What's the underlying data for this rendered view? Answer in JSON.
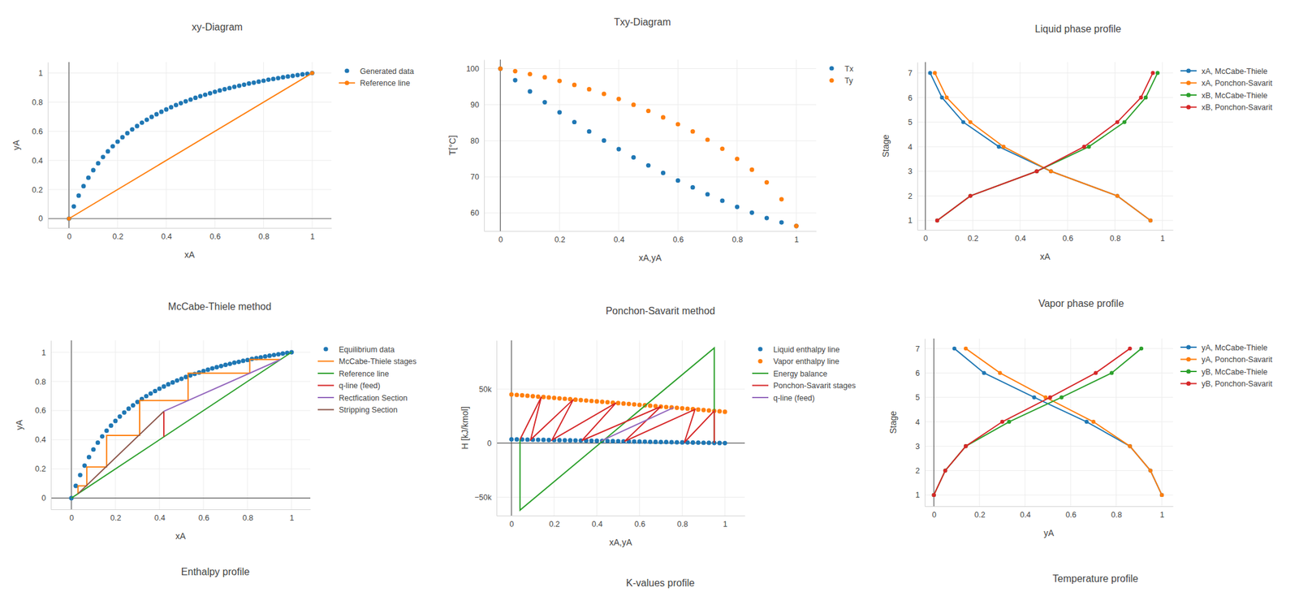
{
  "chart_data": [
    {
      "type": "scatter",
      "title": "xy-Diagram",
      "x_label": "xA",
      "y_label": "yA",
      "xlim": [
        -0.087,
        1.079
      ],
      "ylim": [
        -0.064,
        1.075
      ],
      "xticks": [
        0,
        0.2,
        0.4,
        0.6,
        0.8,
        1
      ],
      "yticks": [
        0,
        0.2,
        0.4,
        0.6,
        0.8,
        1
      ],
      "grid": true,
      "legend": "right",
      "series": [
        {
          "name": "Generated data",
          "color": "#1f77b4",
          "marker": "circle",
          "line_style": "none",
          "x": [
            0,
            0.02,
            0.04,
            0.06,
            0.08,
            0.1,
            0.12,
            0.14,
            0.16,
            0.18,
            0.2,
            0.22,
            0.24,
            0.26,
            0.28,
            0.3,
            0.32,
            0.34,
            0.36,
            0.38,
            0.4,
            0.42,
            0.44,
            0.46,
            0.48,
            0.5,
            0.52,
            0.54,
            0.56,
            0.58,
            0.6,
            0.62,
            0.64,
            0.66,
            0.68,
            0.7,
            0.72,
            0.74,
            0.76,
            0.78,
            0.8,
            0.82,
            0.84,
            0.86,
            0.88,
            0.9,
            0.92,
            0.94,
            0.96,
            0.98,
            1
          ],
          "values": [
            0,
            0.084,
            0.158,
            0.223,
            0.281,
            0.333,
            0.38,
            0.423,
            0.462,
            0.497,
            0.529,
            0.559,
            0.587,
            0.613,
            0.636,
            0.659,
            0.679,
            0.699,
            0.717,
            0.734,
            0.75,
            0.765,
            0.78,
            0.793,
            0.806,
            0.818,
            0.83,
            0.841,
            0.851,
            0.861,
            0.871,
            0.88,
            0.889,
            0.897,
            0.905,
            0.913,
            0.92,
            0.928,
            0.934,
            0.941,
            0.947,
            0.954,
            0.959,
            0.965,
            0.971,
            0.976,
            0.981,
            0.986,
            0.991,
            0.995,
            1
          ]
        },
        {
          "name": "Reference line",
          "color": "#ff7f0e",
          "marker": "circle",
          "line_style": "solid",
          "x": [
            0,
            1
          ],
          "values": [
            0,
            1
          ]
        }
      ]
    },
    {
      "type": "scatter",
      "title": "Txy-Diagram",
      "x_label": "xA,yA",
      "y_label": "T[°C]",
      "xlim": [
        -0.055,
        1.067
      ],
      "ylim": [
        55,
        102.5
      ],
      "xticks": [
        0,
        0.2,
        0.4,
        0.6,
        0.8,
        1
      ],
      "yticks": [
        60,
        70,
        80,
        90,
        100
      ],
      "grid": true,
      "legend": "right",
      "series": [
        {
          "name": "Tx",
          "color": "#1f77b4",
          "marker": "circle",
          "line_style": "none",
          "x": [
            0,
            0.05,
            0.1,
            0.15,
            0.2,
            0.25,
            0.3,
            0.35,
            0.4,
            0.45,
            0.5,
            0.55,
            0.6,
            0.65,
            0.7,
            0.75,
            0.8,
            0.85,
            0.9,
            0.95,
            1
          ],
          "values": [
            100,
            96.8,
            93.7,
            90.7,
            87.9,
            85.2,
            82.6,
            80.1,
            77.7,
            75.4,
            73.2,
            71.1,
            69.0,
            67.1,
            65.2,
            63.4,
            61.7,
            60.1,
            58.6,
            57.4,
            56.4
          ]
        },
        {
          "name": "Ty",
          "color": "#ff7f0e",
          "marker": "circle",
          "line_style": "none",
          "x": [
            0,
            0.05,
            0.1,
            0.15,
            0.2,
            0.25,
            0.3,
            0.35,
            0.4,
            0.45,
            0.5,
            0.55,
            0.6,
            0.65,
            0.7,
            0.75,
            0.8,
            0.85,
            0.9,
            0.95,
            1
          ],
          "values": [
            100,
            99.3,
            98.5,
            97.6,
            96.6,
            95.5,
            94.3,
            93.0,
            91.6,
            90.0,
            88.3,
            86.5,
            84.6,
            82.6,
            80.3,
            77.8,
            75.0,
            72.0,
            68.5,
            63.8,
            56.4
          ]
        }
      ]
    },
    {
      "type": "line",
      "title": "Liquid phase profile",
      "x_label": "xA",
      "y_label": "Stage",
      "xlim": [
        -0.034,
        1.045
      ],
      "ylim": [
        0.62,
        7.44
      ],
      "xticks": [
        0,
        0.2,
        0.4,
        0.6,
        0.8,
        1
      ],
      "yticks": [
        1,
        2,
        3,
        4,
        5,
        6,
        7
      ],
      "grid": true,
      "legend": "right",
      "series": [
        {
          "name": "xA, McCabe-Thiele",
          "color": "#1f77b4",
          "marker": "circle",
          "line_style": "solid",
          "x": [
            0.95,
            0.81,
            0.53,
            0.31,
            0.16,
            0.07,
            0.02
          ],
          "values": [
            1,
            2,
            3,
            4,
            5,
            6,
            7
          ]
        },
        {
          "name": "xA, Ponchon-Savarit",
          "color": "#ff7f0e",
          "marker": "circle",
          "line_style": "solid",
          "x": [
            0.95,
            0.81,
            0.53,
            0.33,
            0.19,
            0.09,
            0.04
          ],
          "values": [
            1,
            2,
            3,
            4,
            5,
            6,
            7
          ]
        },
        {
          "name": "xB, McCabe-Thiele",
          "color": "#2ca02c",
          "marker": "circle",
          "line_style": "solid",
          "x": [
            0.05,
            0.19,
            0.47,
            0.69,
            0.84,
            0.93,
            0.98
          ],
          "values": [
            1,
            2,
            3,
            4,
            5,
            6,
            7
          ]
        },
        {
          "name": "xB, Ponchon-Savarit",
          "color": "#d62728",
          "marker": "circle",
          "line_style": "solid",
          "x": [
            0.05,
            0.19,
            0.47,
            0.67,
            0.81,
            0.91,
            0.96
          ],
          "values": [
            1,
            2,
            3,
            4,
            5,
            6,
            7
          ]
        }
      ]
    },
    {
      "type": "line",
      "title": "McCabe-Thiele method",
      "x_label": "xA",
      "y_label": "yA",
      "xlim": [
        -0.093,
        1.085
      ],
      "ylim": [
        -0.077,
        1.081
      ],
      "xticks": [
        0,
        0.2,
        0.4,
        0.6,
        0.8,
        1
      ],
      "yticks": [
        0,
        0.2,
        0.4,
        0.6,
        0.8,
        1
      ],
      "grid": true,
      "legend": "right",
      "series": [
        {
          "name": "Equilibrium data",
          "color": "#1f77b4",
          "marker": "circle",
          "line_style": "none",
          "x": [
            0,
            0.02,
            0.04,
            0.06,
            0.08,
            0.1,
            0.12,
            0.14,
            0.16,
            0.18,
            0.2,
            0.22,
            0.24,
            0.26,
            0.28,
            0.3,
            0.32,
            0.34,
            0.36,
            0.38,
            0.4,
            0.42,
            0.44,
            0.46,
            0.48,
            0.5,
            0.52,
            0.54,
            0.56,
            0.58,
            0.6,
            0.62,
            0.64,
            0.66,
            0.68,
            0.7,
            0.72,
            0.74,
            0.76,
            0.78,
            0.8,
            0.82,
            0.84,
            0.86,
            0.88,
            0.9,
            0.92,
            0.94,
            0.96,
            0.98,
            1
          ],
          "values": [
            0,
            0.084,
            0.158,
            0.223,
            0.281,
            0.333,
            0.38,
            0.423,
            0.462,
            0.497,
            0.529,
            0.559,
            0.587,
            0.613,
            0.636,
            0.659,
            0.679,
            0.699,
            0.717,
            0.734,
            0.75,
            0.765,
            0.78,
            0.793,
            0.806,
            0.818,
            0.83,
            0.841,
            0.851,
            0.861,
            0.871,
            0.88,
            0.889,
            0.897,
            0.905,
            0.913,
            0.92,
            0.928,
            0.934,
            0.941,
            0.947,
            0.954,
            0.959,
            0.965,
            0.971,
            0.976,
            0.981,
            0.986,
            0.991,
            0.995,
            1
          ]
        },
        {
          "name": "McCabe-Thiele stages",
          "color": "#ff7f0e",
          "marker": "none",
          "line_style": "solid",
          "x": [
            0.95,
            0.81,
            0.81,
            0.53,
            0.53,
            0.31,
            0.31,
            0.16,
            0.16,
            0.07,
            0.07,
            0.03,
            0.03
          ],
          "values": [
            0.95,
            0.95,
            0.856,
            0.856,
            0.669,
            0.669,
            0.43,
            0.43,
            0.214,
            0.214,
            0.084,
            0.084,
            0.03
          ]
        },
        {
          "name": "Reference line",
          "color": "#2ca02c",
          "marker": "none",
          "line_style": "solid",
          "x": [
            0,
            1
          ],
          "values": [
            0,
            1
          ]
        },
        {
          "name": "q-line (feed)",
          "color": "#d62728",
          "marker": "none",
          "line_style": "solid",
          "x": [
            0.42,
            0.42
          ],
          "values": [
            0.42,
            0.595
          ]
        },
        {
          "name": "Rectfication Section",
          "color": "#9467bd",
          "marker": "none",
          "line_style": "solid",
          "x": [
            0.42,
            0.95
          ],
          "values": [
            0.595,
            0.95
          ]
        },
        {
          "name": "Stripping Section",
          "color": "#8c564b",
          "marker": "none",
          "line_style": "solid",
          "x": [
            0.03,
            0.42
          ],
          "values": [
            0.03,
            0.595
          ]
        }
      ]
    },
    {
      "type": "line",
      "title": "Ponchon-Savarit method",
      "x_label": "xA,yA",
      "y_label": "H [kJ/kmol]",
      "xlim": [
        -0.07,
        1.093
      ],
      "ylim": [
        -67000,
        95000
      ],
      "xticks": [
        0,
        0.2,
        0.4,
        0.6,
        0.8,
        1
      ],
      "yticks": [
        {
          "value": -50000,
          "label": "−50k"
        },
        0,
        {
          "value": 50000,
          "label": "50k"
        }
      ],
      "grid": true,
      "legend": "right",
      "series": [
        {
          "name": "Liquid enthalpy line",
          "color": "#1f77b4",
          "marker": "circle",
          "line_style": "none",
          "x": [
            0,
            0.025,
            0.05,
            0.075,
            0.1,
            0.125,
            0.15,
            0.175,
            0.2,
            0.225,
            0.25,
            0.275,
            0.3,
            0.325,
            0.35,
            0.375,
            0.4,
            0.425,
            0.45,
            0.475,
            0.5,
            0.525,
            0.55,
            0.575,
            0.6,
            0.625,
            0.65,
            0.675,
            0.7,
            0.725,
            0.75,
            0.775,
            0.8,
            0.825,
            0.85,
            0.875,
            0.9,
            0.925,
            0.95,
            0.975,
            1
          ],
          "values": [
            3500,
            3412,
            3325,
            3238,
            3150,
            3062,
            2975,
            2888,
            2800,
            2712,
            2625,
            2538,
            2450,
            2362,
            2275,
            2188,
            2100,
            2012,
            1925,
            1838,
            1750,
            1662,
            1575,
            1488,
            1400,
            1312,
            1225,
            1138,
            1050,
            962,
            875,
            788,
            700,
            612,
            525,
            438,
            350,
            262,
            175,
            88,
            0
          ]
        },
        {
          "name": "Vapor enthalpy line",
          "color": "#ff7f0e",
          "marker": "circle",
          "line_style": "none",
          "x": [
            0,
            0.025,
            0.05,
            0.075,
            0.1,
            0.125,
            0.15,
            0.175,
            0.2,
            0.225,
            0.25,
            0.275,
            0.3,
            0.325,
            0.35,
            0.375,
            0.4,
            0.425,
            0.45,
            0.475,
            0.5,
            0.525,
            0.55,
            0.575,
            0.6,
            0.625,
            0.65,
            0.675,
            0.7,
            0.725,
            0.75,
            0.775,
            0.8,
            0.825,
            0.85,
            0.875,
            0.9,
            0.925,
            0.95,
            0.975,
            1
          ],
          "values": [
            45000,
            44600,
            44200,
            43800,
            43400,
            43000,
            42600,
            42200,
            41800,
            41400,
            41000,
            40600,
            40200,
            39800,
            39400,
            39000,
            38600,
            38200,
            37800,
            37400,
            37000,
            36600,
            36200,
            35800,
            35400,
            35000,
            34600,
            34200,
            33800,
            33400,
            33000,
            32600,
            32200,
            31800,
            31400,
            31000,
            30600,
            30200,
            29800,
            29400,
            29000
          ]
        },
        {
          "name": "Energy balance",
          "color": "#2ca02c",
          "marker": "none",
          "line_style": "solid",
          "x": [
            0.04,
            0.04,
            0.95,
            0.95
          ],
          "values": [
            3360,
            -62000,
            88000,
            175
          ]
        },
        {
          "name": "Ponchon-Savarit stages",
          "color": "#d62728",
          "marker": "none",
          "line_style": "solid",
          "x": [
            0.95,
            0.95,
            0.81,
            0.86,
            0.53,
            0.7,
            0.33,
            0.49,
            0.19,
            0.29,
            0.09,
            0.14,
            0.04
          ],
          "values": [
            175,
            29800,
            665,
            31240,
            1645,
            33800,
            2345,
            37160,
            2835,
            40360,
            3185,
            42760,
            3360
          ]
        },
        {
          "name": "q-line (feed)",
          "color": "#9467bd",
          "marker": "none",
          "line_style": "solid",
          "x": [
            0.42,
            0.76
          ],
          "values": [
            2030,
            32840
          ]
        }
      ]
    },
    {
      "type": "line",
      "title": "Vapor phase profile",
      "x_label": "yA",
      "y_label": "Stage",
      "xlim": [
        -0.04,
        1.049
      ],
      "ylim": [
        0.54,
        7.41
      ],
      "xticks": [
        0,
        0.2,
        0.4,
        0.6,
        0.8,
        1
      ],
      "yticks": [
        1,
        2,
        3,
        4,
        5,
        6,
        7
      ],
      "grid": true,
      "legend": "right",
      "series": [
        {
          "name": "yA, McCabe-Thiele",
          "color": "#1f77b4",
          "marker": "circle",
          "line_style": "solid",
          "x": [
            1.0,
            0.95,
            0.86,
            0.67,
            0.44,
            0.22,
            0.09
          ],
          "values": [
            1,
            2,
            3,
            4,
            5,
            6,
            7
          ]
        },
        {
          "name": "yA, Ponchon-Savarit",
          "color": "#ff7f0e",
          "marker": "circle",
          "line_style": "solid",
          "x": [
            1.0,
            0.95,
            0.86,
            0.7,
            0.49,
            0.29,
            0.14
          ],
          "values": [
            1,
            2,
            3,
            4,
            5,
            6,
            7
          ]
        },
        {
          "name": "yB, McCabe-Thiele",
          "color": "#2ca02c",
          "marker": "circle",
          "line_style": "solid",
          "x": [
            0,
            0.05,
            0.14,
            0.33,
            0.56,
            0.78,
            0.91
          ],
          "values": [
            1,
            2,
            3,
            4,
            5,
            6,
            7
          ]
        },
        {
          "name": "yB, Ponchon-Savarit",
          "color": "#d62728",
          "marker": "circle",
          "line_style": "solid",
          "x": [
            0,
            0.05,
            0.14,
            0.3,
            0.51,
            0.71,
            0.86
          ],
          "values": [
            1,
            2,
            3,
            4,
            5,
            6,
            7
          ]
        }
      ]
    },
    {
      "type": "line",
      "title": "Enthalpy profile"
    },
    {
      "type": "line",
      "title": "K-values profile"
    },
    {
      "type": "line",
      "title": "Temperature profile"
    }
  ]
}
